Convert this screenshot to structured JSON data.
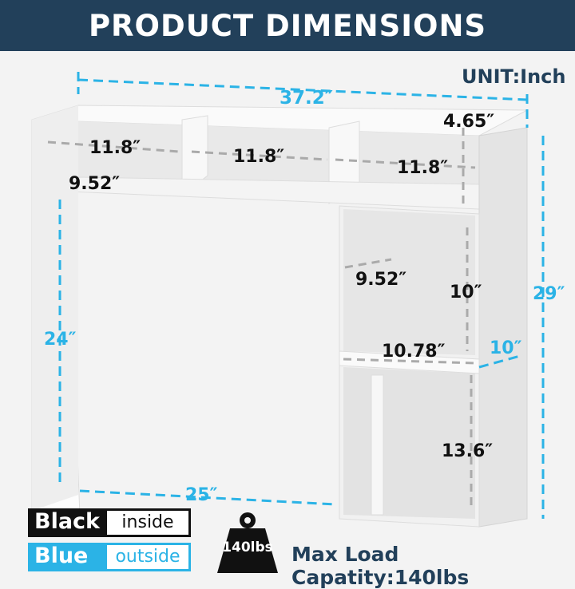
{
  "header": {
    "title": "PRODUCT DIMENSIONS"
  },
  "unit": "UNIT:Inch",
  "dimensions": {
    "overall_width": "37.2″",
    "overall_height": "29″",
    "leg_height": "24″",
    "leg_span": "25″",
    "overall_depth": "10″",
    "top_depth": "4.65″",
    "cubby_width_1": "11.8″",
    "cubby_width_2": "11.8″",
    "cubby_width_3": "11.8″",
    "cubby_depth": "9.52″",
    "side_shelf_depth": "9.52″",
    "side_shelf_height": "10″",
    "side_shelf_width": "10.78″",
    "bottom_height": "13.6″"
  },
  "legend": [
    {
      "key": "Black",
      "value": "inside",
      "color": "#111111"
    },
    {
      "key": "Blue",
      "value": "outside",
      "color": "#2bb3e6"
    }
  ],
  "weight_icon": {
    "label": "140lbs",
    "icon": "weight-icon"
  },
  "max_load": "Max Load Capatity:140lbs",
  "colors": {
    "header": "#22405a",
    "outside": "#2bb3e6",
    "inside": "#111111"
  }
}
